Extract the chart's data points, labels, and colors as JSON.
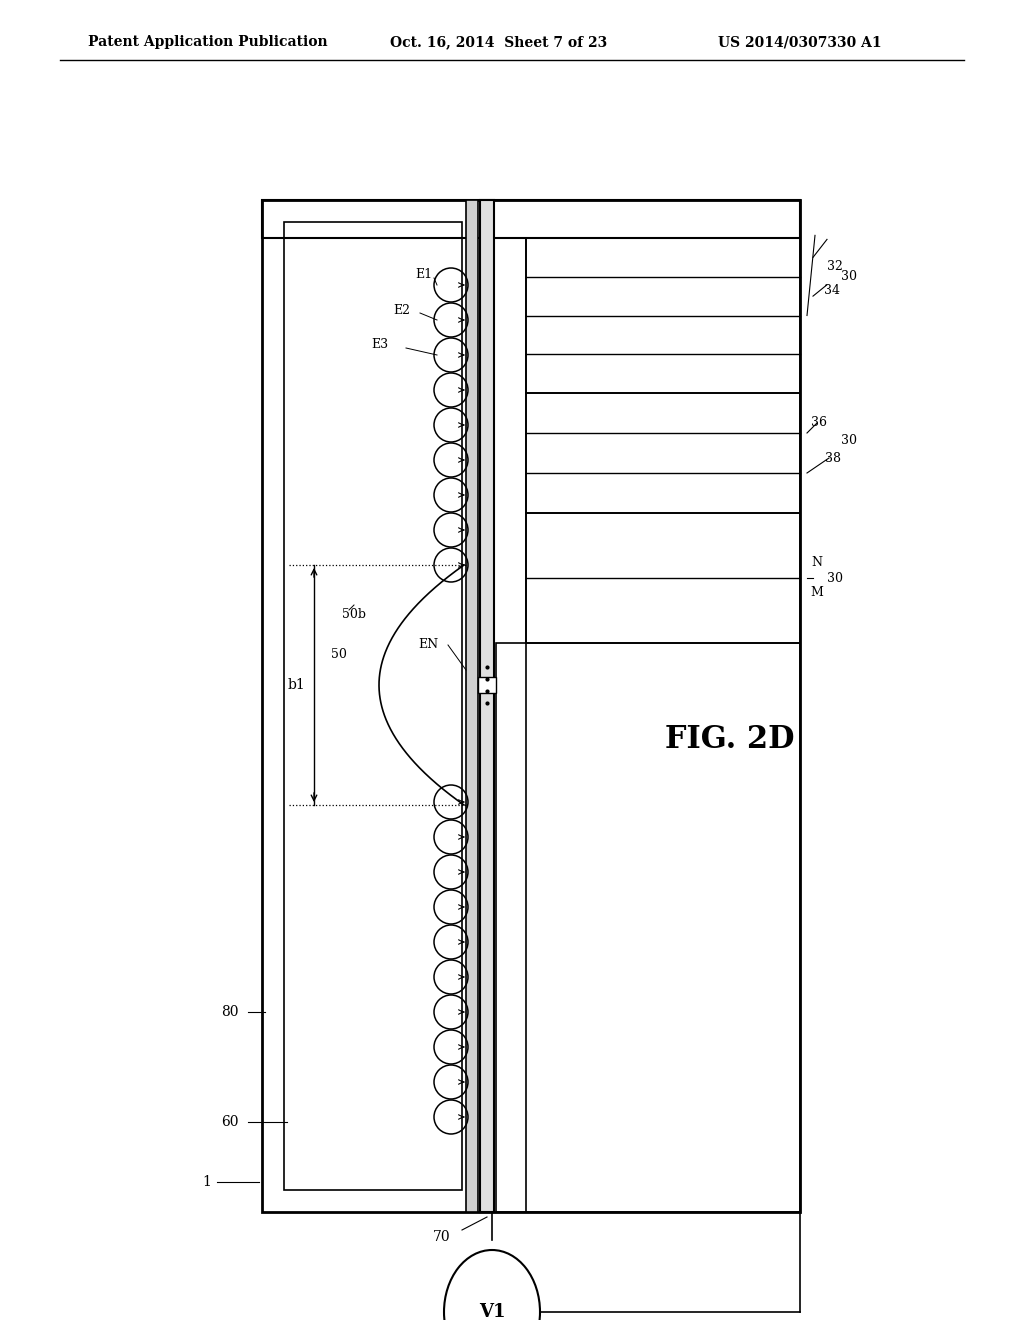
{
  "bg_color": "#ffffff",
  "header_text1": "Patent Application Publication",
  "header_text2": "Oct. 16, 2014  Sheet 7 of 23",
  "header_text3": "US 2014/0307330 A1",
  "fig_label": "FIG. 2D"
}
